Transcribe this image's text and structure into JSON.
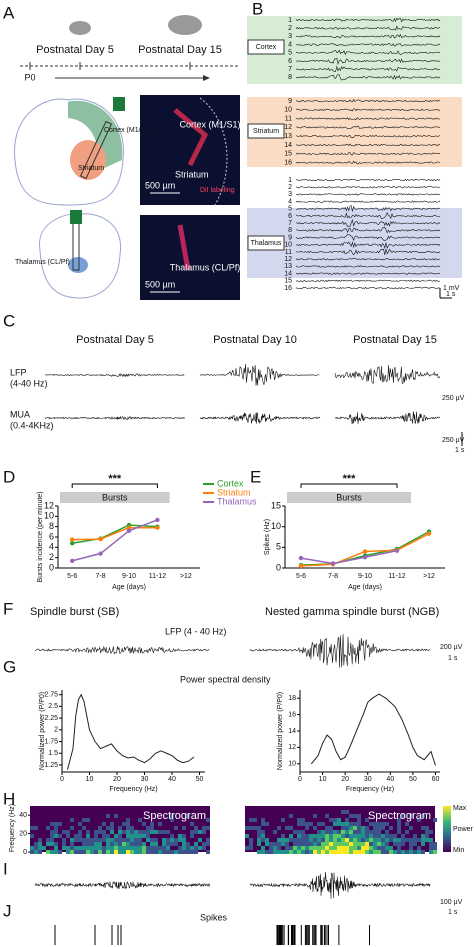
{
  "panel_labels": [
    "A",
    "B",
    "C",
    "D",
    "E",
    "F",
    "G",
    "H",
    "I",
    "J"
  ],
  "a": {
    "day_left": "Postnatal Day 5",
    "day_right": "Postnatal Day 15",
    "start": "P0",
    "cortex": "Cortex (M1/S1)",
    "striatum": "Striatum",
    "striatum_label": "Striatum",
    "dil": "DiI labeling",
    "scale": "500 µm",
    "thalamus": "Thalamus (CL/Pf)",
    "thalamus_slice": "Thalamus (CL/Pf)",
    "scale2": "500 µm"
  },
  "b": {
    "cortex": "Cortex",
    "striatum": "Striatum",
    "thalamus": "Thalamus",
    "cortex_channels": [
      1,
      2,
      3,
      4,
      5,
      6,
      7,
      8
    ],
    "striatum_channels": [
      9,
      10,
      11,
      12,
      13,
      14,
      15,
      16
    ],
    "thalamus_channels": [
      1,
      2,
      3,
      4,
      5,
      6,
      7,
      8,
      9,
      10,
      11,
      12,
      13,
      14,
      15,
      16
    ],
    "scale_v": "1 mV",
    "scale_t": "1 s"
  },
  "c": {
    "days": [
      "Postnatal Day 5",
      "Postnatal Day 10",
      "Postnatal Day 15"
    ],
    "lfp": "LFP",
    "lfp_band": "(4-40 Hz)",
    "mua": "MUA",
    "mua_band": "(0.4-4KHz)",
    "scale_v1": "250 µV",
    "scale_v2": "250 µV",
    "scale_t": "1 s"
  },
  "chart_data": [
    {
      "type": "line",
      "banner": "Bursts",
      "significance": "***",
      "y_label": "Bursts incidence (per minute)",
      "x_label": "Age (days)",
      "categories": [
        "5-6",
        "7-8",
        "9-10",
        "11-12",
        ">12"
      ],
      "ylim": [
        0,
        12
      ],
      "yticks": [
        0,
        2,
        4,
        6,
        8,
        10,
        12
      ],
      "legend": "top-right",
      "series": [
        {
          "name": "Cortex",
          "color": "#2ca02c",
          "values": [
            4.8,
            5.7,
            8.3,
            8.0,
            null
          ]
        },
        {
          "name": "Striatum",
          "color": "#ff7f0e",
          "values": [
            5.5,
            5.6,
            7.8,
            7.8,
            null
          ]
        },
        {
          "name": "Thalamus",
          "color": "#9467bd",
          "values": [
            1.4,
            2.8,
            7.2,
            9.3,
            null
          ]
        }
      ]
    },
    {
      "type": "line",
      "banner": "Bursts",
      "significance": "***",
      "y_label": "Spikes (Hz)",
      "x_label": "Age (days)",
      "categories": [
        "5-6",
        "7-8",
        "9-10",
        "11-12",
        ">12"
      ],
      "ylim": [
        0,
        15
      ],
      "yticks": [
        0,
        5,
        10,
        15
      ],
      "series": [
        {
          "name": "Cortex",
          "color": "#2ca02c",
          "values": [
            0.7,
            1.0,
            3.0,
            4.6,
            8.8
          ]
        },
        {
          "name": "Striatum",
          "color": "#ff7f0e",
          "values": [
            0.5,
            0.9,
            4.0,
            4.3,
            8.3
          ]
        },
        {
          "name": "Thalamus",
          "color": "#9467bd",
          "values": [
            2.4,
            1.1,
            2.6,
            4.2,
            null
          ]
        }
      ]
    },
    {
      "type": "psd",
      "x_label": "Frequency (Hz)",
      "y_label": "Normalized power (P/P0)",
      "xlim": [
        0,
        52
      ],
      "xticks": [
        0,
        10,
        20,
        30,
        40,
        50
      ],
      "ylim": [
        1.1,
        2.85
      ],
      "yticks": [
        1.25,
        1.5,
        1.75,
        2,
        2.25,
        2.5,
        2.75
      ],
      "x": [
        2,
        4,
        5,
        6,
        7,
        8,
        9,
        10,
        12,
        14,
        16,
        18,
        20,
        22,
        24,
        26,
        28,
        30,
        32,
        34,
        36,
        38,
        40,
        42,
        44,
        46,
        48
      ],
      "series": [
        {
          "color": "#222222",
          "values": [
            1.15,
            1.6,
            2.3,
            2.65,
            2.75,
            2.6,
            2.3,
            2.0,
            1.75,
            1.6,
            1.65,
            1.7,
            1.55,
            1.45,
            1.4,
            1.42,
            1.35,
            1.3,
            1.38,
            1.5,
            1.55,
            1.5,
            1.45,
            1.35,
            1.3,
            1.33,
            1.42
          ]
        }
      ]
    },
    {
      "type": "psd",
      "x_label": "Frequency (Hz)",
      "y_label": "Normalized power (P/P0)",
      "xlim": [
        0,
        62
      ],
      "xticks": [
        0,
        10,
        20,
        30,
        40,
        50,
        60
      ],
      "ylim": [
        9,
        19
      ],
      "yticks": [
        10,
        12,
        14,
        16,
        18
      ],
      "x": [
        5,
        8,
        10,
        12,
        14,
        16,
        18,
        20,
        22,
        25,
        28,
        30,
        32,
        35,
        38,
        40,
        42,
        45,
        48,
        50,
        52,
        55,
        58,
        60
      ],
      "series": [
        {
          "color": "#222222",
          "values": [
            10,
            11,
            12.5,
            13.5,
            13,
            11.5,
            10.5,
            10.8,
            12,
            14,
            16,
            17.5,
            18,
            18.5,
            18,
            17.5,
            17,
            15.5,
            13.5,
            12,
            11,
            10.5,
            11.5,
            9.8
          ]
        }
      ]
    }
  ],
  "f": {
    "sb": "Spindle burst (SB)",
    "ngb": "Nested gamma spindle burst (NGB)",
    "lfp": "LFP (4 - 40 Hz)",
    "scale_v": "200 µV",
    "scale_t": "1 s"
  },
  "g": {
    "title": "Power spectral density"
  },
  "h": {
    "title_left": "Spectrogram",
    "title_right": "Spectrogram",
    "y_label": "Frequency (Hz)",
    "yticks": [
      0,
      20,
      40
    ],
    "ylim": [
      0,
      50
    ],
    "cb_max": "Max",
    "cb_label": "Power",
    "cb_min": "Min"
  },
  "i": {
    "scale_v": "100 µV",
    "scale_t": "1 s"
  },
  "j": {
    "title": "Spikes"
  }
}
